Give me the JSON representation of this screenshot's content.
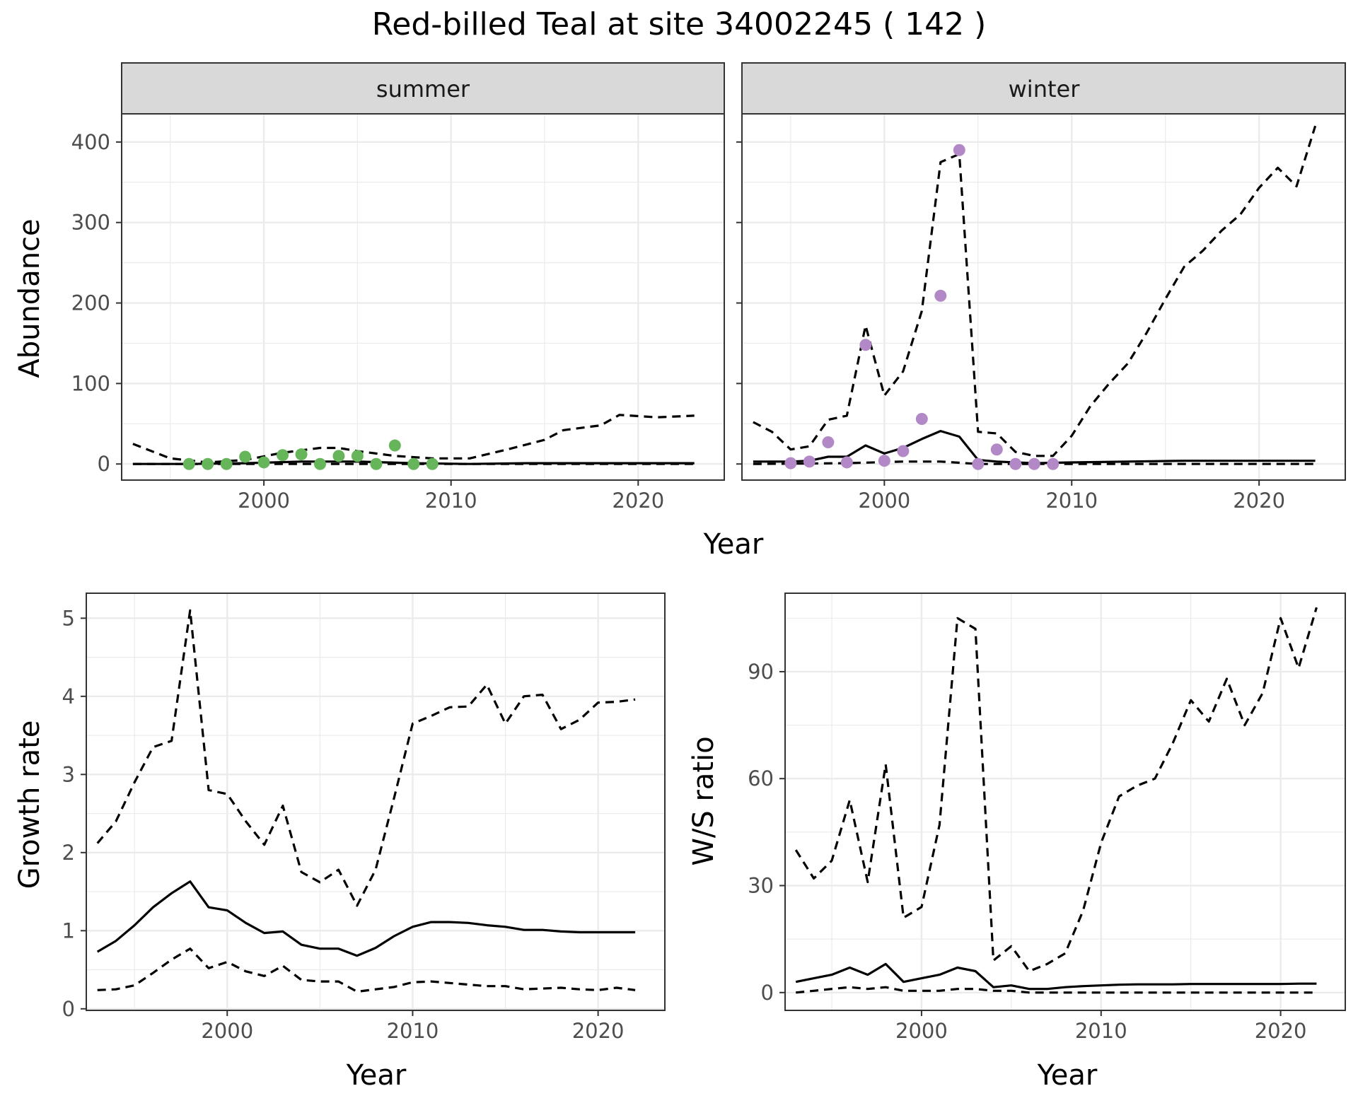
{
  "figure": {
    "title": "Red-billed Teal at site 34002245 ( 142 )"
  },
  "chart_data": [
    {
      "id": "abundance",
      "type": "line",
      "facet_label": "summer",
      "xlabel": "Year",
      "ylabel": "Abundance",
      "xlim": [
        1992.4,
        2024.6
      ],
      "ylim": [
        -20,
        435
      ],
      "x_ticks": [
        2000,
        2010,
        2020
      ],
      "y_ticks": [
        0,
        100,
        200,
        300,
        400
      ],
      "grid": true,
      "lines": [
        {
          "style": "dashed",
          "x": [
            1993,
            1995,
            1997,
            1999,
            2001,
            2003,
            2004,
            2005,
            2007,
            2009,
            2011,
            2013,
            2015,
            2016,
            2018,
            2019,
            2021,
            2023
          ],
          "y": [
            25,
            7,
            2,
            5,
            14,
            20,
            20,
            16,
            10,
            7,
            7,
            18,
            30,
            42,
            48,
            61,
            58,
            60
          ]
        },
        {
          "style": "solid",
          "x": [
            1993,
            1996,
            1999,
            2002,
            2005,
            2008,
            2011,
            2014,
            2017,
            2020,
            2023
          ],
          "y": [
            0,
            0,
            1,
            3,
            3,
            1,
            0,
            1,
            1,
            1,
            1
          ]
        },
        {
          "style": "dashed",
          "x": [
            1993,
            2000,
            2005,
            2010,
            2015,
            2020,
            2023
          ],
          "y": [
            0,
            0,
            0,
            0,
            0,
            0,
            0
          ]
        }
      ],
      "points": {
        "color": "#66b55a",
        "x": [
          1996,
          1997,
          1998,
          1999,
          2000,
          2001,
          2002,
          2003,
          2004,
          2005,
          2006,
          2007,
          2008,
          2009
        ],
        "y": [
          0,
          0,
          0,
          9,
          2,
          11,
          12,
          0,
          10,
          10,
          0,
          23,
          0,
          0
        ]
      }
    },
    {
      "id": "abundance",
      "type": "line",
      "facet_label": "winter",
      "xlabel": "Year",
      "ylabel": "Abundance",
      "xlim": [
        1992.4,
        2024.6
      ],
      "ylim": [
        -20,
        435
      ],
      "x_ticks": [
        2000,
        2010,
        2020
      ],
      "y_ticks": [
        0,
        100,
        200,
        300,
        400
      ],
      "grid": true,
      "lines": [
        {
          "style": "dashed",
          "x": [
            1993,
            1994,
            1995,
            1996,
            1997,
            1998,
            1999,
            2000,
            2001,
            2002,
            2003,
            2004,
            2005,
            2006,
            2007,
            2008,
            2009,
            2010,
            2011,
            2012,
            2013,
            2014,
            2015,
            2016,
            2017,
            2018,
            2019,
            2020,
            2021,
            2022,
            2023
          ],
          "y": [
            52,
            40,
            18,
            22,
            55,
            60,
            172,
            85,
            115,
            190,
            375,
            385,
            40,
            38,
            15,
            10,
            10,
            35,
            72,
            100,
            125,
            163,
            205,
            245,
            265,
            290,
            310,
            343,
            368,
            345,
            420
          ]
        },
        {
          "style": "solid",
          "x": [
            1993,
            1995,
            1996,
            1997,
            1998,
            1999,
            2000,
            2001,
            2002,
            2003,
            2004,
            2005,
            2006,
            2008,
            2010,
            2013,
            2016,
            2020,
            2023
          ],
          "y": [
            3,
            3,
            4,
            9,
            9,
            23,
            13,
            20,
            31,
            41,
            34,
            5,
            3,
            1,
            2,
            3,
            4,
            4,
            4
          ]
        },
        {
          "style": "dashed",
          "x": [
            1993,
            1998,
            2001,
            2003,
            2005,
            2010,
            2015,
            2020,
            2023
          ],
          "y": [
            0,
            1,
            3,
            3,
            0,
            0,
            0,
            0,
            0
          ]
        }
      ],
      "points": {
        "color": "#b388c6",
        "x": [
          1995,
          1996,
          1997,
          1998,
          1999,
          2000,
          2001,
          2002,
          2003,
          2004,
          2005,
          2006,
          2007,
          2008,
          2009
        ],
        "y": [
          1,
          3,
          27,
          2,
          148,
          4,
          16,
          56,
          209,
          390,
          0,
          18,
          0,
          0,
          0
        ]
      }
    },
    {
      "id": "growth",
      "type": "line",
      "xlabel": "Year",
      "ylabel": "Growth rate",
      "xlim": [
        1992.4,
        2023.6
      ],
      "ylim": [
        -0.02,
        5.32
      ],
      "x_ticks": [
        2000,
        2010,
        2020
      ],
      "y_ticks": [
        0,
        1,
        2,
        3,
        4,
        5
      ],
      "grid": true,
      "lines": [
        {
          "style": "dashed",
          "x": [
            1993,
            1994,
            1995,
            1996,
            1997,
            1998,
            1999,
            2000,
            2001,
            2002,
            2003,
            2004,
            2005,
            2006,
            2007,
            2008,
            2009,
            2010,
            2011,
            2012,
            2013,
            2014,
            2015,
            2016,
            2017,
            2018,
            2019,
            2020,
            2021,
            2022
          ],
          "y": [
            2.12,
            2.4,
            2.9,
            3.35,
            3.43,
            5.1,
            2.8,
            2.75,
            2.4,
            2.1,
            2.6,
            1.75,
            1.62,
            1.78,
            1.32,
            1.78,
            2.7,
            3.65,
            3.75,
            3.86,
            3.87,
            4.15,
            3.65,
            4.0,
            4.02,
            3.58,
            3.7,
            3.92,
            3.93,
            3.96
          ]
        },
        {
          "style": "solid",
          "x": [
            1993,
            1994,
            1995,
            1996,
            1997,
            1998,
            1999,
            2000,
            2001,
            2002,
            2003,
            2004,
            2005,
            2006,
            2007,
            2008,
            2009,
            2010,
            2011,
            2012,
            2013,
            2014,
            2015,
            2016,
            2017,
            2018,
            2019,
            2020,
            2021,
            2022
          ],
          "y": [
            0.73,
            0.87,
            1.07,
            1.3,
            1.48,
            1.63,
            1.3,
            1.26,
            1.1,
            0.97,
            0.99,
            0.82,
            0.77,
            0.77,
            0.68,
            0.78,
            0.93,
            1.05,
            1.11,
            1.11,
            1.1,
            1.07,
            1.05,
            1.01,
            1.01,
            0.99,
            0.98,
            0.98,
            0.98,
            0.98
          ]
        },
        {
          "style": "dashed",
          "x": [
            1993,
            1994,
            1995,
            1996,
            1997,
            1998,
            1999,
            2000,
            2001,
            2002,
            2003,
            2004,
            2005,
            2006,
            2007,
            2008,
            2009,
            2010,
            2011,
            2012,
            2013,
            2014,
            2015,
            2016,
            2017,
            2018,
            2019,
            2020,
            2021,
            2022
          ],
          "y": [
            0.24,
            0.25,
            0.3,
            0.46,
            0.63,
            0.77,
            0.52,
            0.6,
            0.48,
            0.42,
            0.55,
            0.37,
            0.35,
            0.35,
            0.22,
            0.25,
            0.28,
            0.34,
            0.35,
            0.33,
            0.31,
            0.29,
            0.29,
            0.25,
            0.26,
            0.27,
            0.25,
            0.24,
            0.27,
            0.24
          ]
        }
      ]
    },
    {
      "id": "ratio",
      "type": "line",
      "xlabel": "Year",
      "ylabel": "W/S ratio",
      "xlim": [
        1992.4,
        2023.6
      ],
      "ylim": [
        -5,
        112
      ],
      "x_ticks": [
        2000,
        2010,
        2020
      ],
      "y_ticks": [
        0,
        30,
        60,
        90
      ],
      "grid": true,
      "lines": [
        {
          "style": "dashed",
          "x": [
            1993,
            1994,
            1995,
            1996,
            1997,
            1998,
            1999,
            2000,
            2001,
            2002,
            2003,
            2004,
            2005,
            2006,
            2007,
            2008,
            2009,
            2010,
            2011,
            2012,
            2013,
            2014,
            2015,
            2016,
            2017,
            2018,
            2019,
            2020,
            2021,
            2022
          ],
          "y": [
            40,
            32,
            37,
            54,
            31,
            64,
            21,
            24,
            47,
            105,
            102,
            9,
            13,
            6,
            8,
            11,
            23,
            42,
            55,
            58,
            60,
            70,
            82,
            76,
            88,
            75,
            84,
            105,
            91,
            108
          ]
        },
        {
          "style": "solid",
          "x": [
            1993,
            1994,
            1995,
            1996,
            1997,
            1998,
            1999,
            2000,
            2001,
            2002,
            2003,
            2004,
            2005,
            2006,
            2007,
            2008,
            2009,
            2010,
            2011,
            2012,
            2013,
            2014,
            2015,
            2016,
            2017,
            2018,
            2019,
            2020,
            2021,
            2022
          ],
          "y": [
            3,
            4,
            5,
            7,
            5,
            8,
            3,
            4,
            5,
            7,
            6,
            1.5,
            2,
            1,
            1,
            1.5,
            1.8,
            2,
            2.2,
            2.3,
            2.3,
            2.3,
            2.4,
            2.4,
            2.4,
            2.4,
            2.4,
            2.4,
            2.5,
            2.5
          ]
        },
        {
          "style": "dashed",
          "x": [
            1993,
            1994,
            1995,
            1996,
            1997,
            1998,
            1999,
            2000,
            2001,
            2002,
            2003,
            2004,
            2005,
            2006,
            2007,
            2008,
            2010,
            2013,
            2016,
            2019,
            2022
          ],
          "y": [
            0,
            0.5,
            1,
            1.5,
            1,
            1.5,
            0.5,
            0.5,
            0.5,
            1,
            1,
            0.5,
            0.5,
            0,
            0,
            0,
            0,
            0,
            0,
            0,
            0
          ]
        }
      ]
    }
  ]
}
